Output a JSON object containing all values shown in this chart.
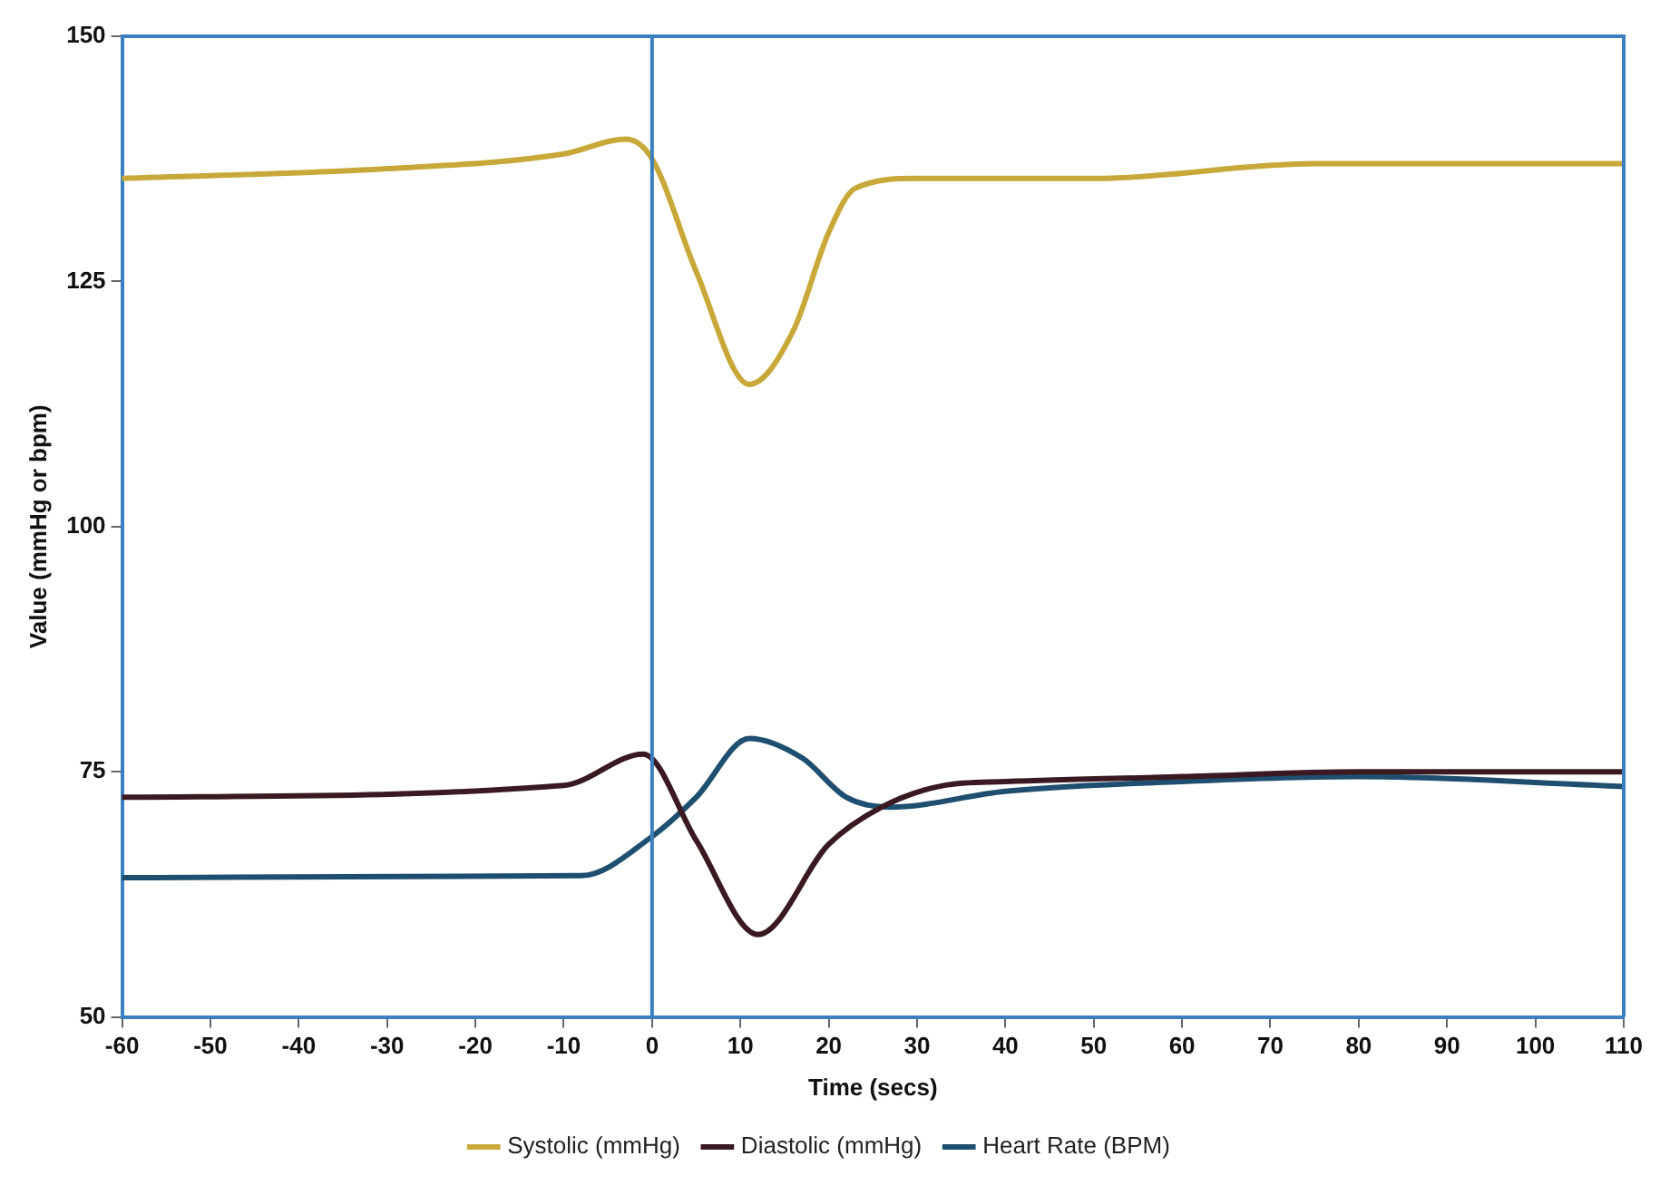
{
  "chart_data": {
    "type": "line",
    "xlabel": "Time (secs)",
    "ylabel": "Value (mmHg or bpm)",
    "xlim": [
      -60,
      110
    ],
    "xticks": [
      -60,
      -50,
      -40,
      -30,
      -20,
      -10,
      0,
      10,
      20,
      30,
      40,
      50,
      60,
      70,
      80,
      90,
      100,
      110
    ],
    "ylim": [
      50,
      150
    ],
    "yticks": [
      50,
      75,
      100,
      125,
      150
    ],
    "grid": false,
    "legend": "bottom",
    "marker": "none",
    "line_style": "solid",
    "ref_lines": [
      {
        "axis": "x",
        "value": 0,
        "color": "#3a7fc0"
      }
    ],
    "series": [
      {
        "name": "Systolic (mmHg)",
        "color": "#c8a838",
        "x": [
          -60,
          -30,
          -10,
          -3,
          0,
          5,
          11,
          16,
          20,
          23,
          30,
          50,
          75,
          110
        ],
        "values": [
          135.5,
          136.5,
          138,
          139.5,
          137.5,
          126,
          114.5,
          120,
          130,
          134.5,
          135.5,
          135.5,
          137,
          137
        ]
      },
      {
        "name": "Diastolic (mmHg)",
        "color": "#3a1a20",
        "x": [
          -60,
          -10,
          -1,
          5,
          12,
          20,
          26,
          33,
          40,
          60,
          80,
          100,
          110
        ],
        "values": [
          72.4,
          73.6,
          76.8,
          68,
          58.4,
          67.6,
          71.4,
          73.6,
          74,
          74.5,
          75,
          75,
          75
        ]
      },
      {
        "name": "Heart Rate (BPM)",
        "color": "#1f4f70",
        "x": [
          -60,
          -8,
          0,
          5,
          11,
          17,
          22,
          27,
          40,
          60,
          80,
          110
        ],
        "values": [
          64.2,
          64.4,
          68.4,
          72.4,
          78.4,
          76.4,
          72.4,
          71.4,
          73,
          74,
          74.5,
          73.5
        ]
      }
    ]
  }
}
